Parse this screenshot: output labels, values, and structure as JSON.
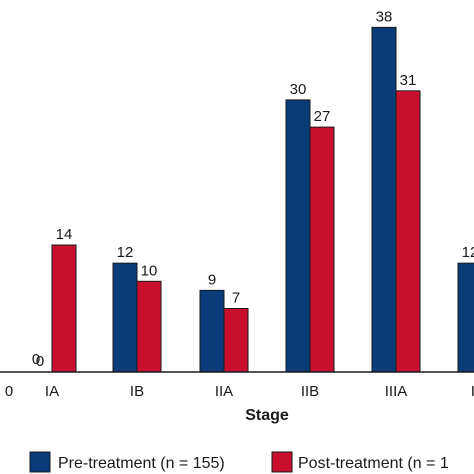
{
  "chart_data": {
    "type": "bar",
    "xlabel": "Stage",
    "categories": [
      "0",
      "IA",
      "IB",
      "IIA",
      "IIB",
      "IIIA",
      "IIIB"
    ],
    "series": [
      {
        "name": "Pre-treatment (n = 155)",
        "color": "#0b3c7a",
        "values": [
          0,
          0,
          12,
          9,
          30,
          38,
          12
        ]
      },
      {
        "name": "Post-treatment (n = 1",
        "color": "#c8102e",
        "values": [
          null,
          14,
          10,
          7,
          27,
          31,
          null
        ]
      }
    ],
    "ylim": [
      0,
      40
    ],
    "grid": false,
    "legend_position": "bottom"
  }
}
